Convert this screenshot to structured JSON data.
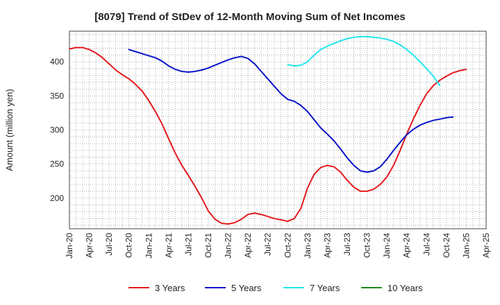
{
  "chart_data": {
    "type": "line",
    "title": "[8079]  Trend of StDev of 12-Month Moving Sum of Net Incomes",
    "xlabel": "",
    "ylabel": "Amount (million yen)",
    "xlim": [
      "2020-01",
      "2025-04"
    ],
    "ylim": [
      155,
      445
    ],
    "y_ticks": [
      200,
      250,
      300,
      350,
      400
    ],
    "x_ticks": [
      "Jan-20",
      "Apr-20",
      "Jul-20",
      "Oct-20",
      "Jan-21",
      "Apr-21",
      "Jul-21",
      "Oct-21",
      "Jan-22",
      "Apr-22",
      "Jul-22",
      "Oct-22",
      "Jan-23",
      "Apr-23",
      "Jul-23",
      "Oct-23",
      "Jan-24",
      "Apr-24",
      "Jul-24",
      "Oct-24",
      "Jan-25",
      "Apr-25"
    ],
    "grid": true,
    "legend_position": "bottom",
    "series": [
      {
        "name": "3 Years",
        "color": "#e31a1c",
        "points": [
          [
            "2020-01",
            419
          ],
          [
            "2020-02",
            421
          ],
          [
            "2020-03",
            421
          ],
          [
            "2020-04",
            418
          ],
          [
            "2020-05",
            413
          ],
          [
            "2020-06",
            406
          ],
          [
            "2020-07",
            397
          ],
          [
            "2020-08",
            388
          ],
          [
            "2020-09",
            381
          ],
          [
            "2020-10",
            375
          ],
          [
            "2020-11",
            367
          ],
          [
            "2020-12",
            357
          ],
          [
            "2021-01",
            343
          ],
          [
            "2021-02",
            327
          ],
          [
            "2021-03",
            309
          ],
          [
            "2021-04",
            287
          ],
          [
            "2021-05",
            266
          ],
          [
            "2021-06",
            248
          ],
          [
            "2021-07",
            233
          ],
          [
            "2021-08",
            217
          ],
          [
            "2021-09",
            200
          ],
          [
            "2021-10",
            181
          ],
          [
            "2021-11",
            169
          ],
          [
            "2021-12",
            163
          ],
          [
            "2022-01",
            162
          ],
          [
            "2022-02",
            164
          ],
          [
            "2022-03",
            169
          ],
          [
            "2022-04",
            176
          ],
          [
            "2022-05",
            178
          ],
          [
            "2022-06",
            176
          ],
          [
            "2022-07",
            173
          ],
          [
            "2022-08",
            170
          ],
          [
            "2022-09",
            168
          ],
          [
            "2022-10",
            166
          ],
          [
            "2022-11",
            170
          ],
          [
            "2022-12",
            185
          ],
          [
            "2023-01",
            215
          ],
          [
            "2023-02",
            235
          ],
          [
            "2023-03",
            245
          ],
          [
            "2023-04",
            248
          ],
          [
            "2023-05",
            246
          ],
          [
            "2023-06",
            238
          ],
          [
            "2023-07",
            226
          ],
          [
            "2023-08",
            216
          ],
          [
            "2023-09",
            210
          ],
          [
            "2023-10",
            210
          ],
          [
            "2023-11",
            213
          ],
          [
            "2023-12",
            220
          ],
          [
            "2024-01",
            231
          ],
          [
            "2024-02",
            248
          ],
          [
            "2024-03",
            270
          ],
          [
            "2024-04",
            294
          ],
          [
            "2024-05",
            316
          ],
          [
            "2024-06",
            336
          ],
          [
            "2024-07",
            353
          ],
          [
            "2024-08",
            365
          ],
          [
            "2024-09",
            373
          ],
          [
            "2024-10",
            379
          ],
          [
            "2024-11",
            384
          ],
          [
            "2024-12",
            387
          ],
          [
            "2025-01",
            389
          ]
        ]
      },
      {
        "name": "5 Years",
        "color": "#0a14c8",
        "points": [
          [
            "2020-10",
            418
          ],
          [
            "2020-11",
            415
          ],
          [
            "2020-12",
            412
          ],
          [
            "2021-01",
            409
          ],
          [
            "2021-02",
            406
          ],
          [
            "2021-03",
            401
          ],
          [
            "2021-04",
            394
          ],
          [
            "2021-05",
            389
          ],
          [
            "2021-06",
            386
          ],
          [
            "2021-07",
            385
          ],
          [
            "2021-08",
            386
          ],
          [
            "2021-09",
            388
          ],
          [
            "2021-10",
            391
          ],
          [
            "2021-11",
            395
          ],
          [
            "2021-12",
            399
          ],
          [
            "2022-01",
            403
          ],
          [
            "2022-02",
            406
          ],
          [
            "2022-03",
            408
          ],
          [
            "2022-04",
            405
          ],
          [
            "2022-05",
            397
          ],
          [
            "2022-06",
            386
          ],
          [
            "2022-07",
            375
          ],
          [
            "2022-08",
            364
          ],
          [
            "2022-09",
            353
          ],
          [
            "2022-10",
            345
          ],
          [
            "2022-11",
            342
          ],
          [
            "2022-12",
            336
          ],
          [
            "2023-01",
            327
          ],
          [
            "2023-02",
            315
          ],
          [
            "2023-03",
            303
          ],
          [
            "2023-04",
            294
          ],
          [
            "2023-05",
            284
          ],
          [
            "2023-06",
            272
          ],
          [
            "2023-07",
            259
          ],
          [
            "2023-08",
            248
          ],
          [
            "2023-09",
            240
          ],
          [
            "2023-10",
            238
          ],
          [
            "2023-11",
            240
          ],
          [
            "2023-12",
            246
          ],
          [
            "2024-01",
            257
          ],
          [
            "2024-02",
            270
          ],
          [
            "2024-03",
            282
          ],
          [
            "2024-04",
            293
          ],
          [
            "2024-05",
            301
          ],
          [
            "2024-06",
            307
          ],
          [
            "2024-07",
            311
          ],
          [
            "2024-08",
            314
          ],
          [
            "2024-09",
            316
          ],
          [
            "2024-10",
            318
          ],
          [
            "2024-11",
            319
          ]
        ]
      },
      {
        "name": "7 Years",
        "color": "#22e6f0",
        "points": [
          [
            "2022-10",
            396
          ],
          [
            "2022-11",
            394
          ],
          [
            "2022-12",
            395
          ],
          [
            "2023-01",
            400
          ],
          [
            "2023-02",
            410
          ],
          [
            "2023-03",
            418
          ],
          [
            "2023-04",
            423
          ],
          [
            "2023-05",
            427
          ],
          [
            "2023-06",
            431
          ],
          [
            "2023-07",
            434
          ],
          [
            "2023-08",
            436
          ],
          [
            "2023-09",
            437
          ],
          [
            "2023-10",
            437
          ],
          [
            "2023-11",
            436
          ],
          [
            "2023-12",
            435
          ],
          [
            "2024-01",
            433
          ],
          [
            "2024-02",
            430
          ],
          [
            "2024-03",
            425
          ],
          [
            "2024-04",
            418
          ],
          [
            "2024-05",
            410
          ],
          [
            "2024-06",
            400
          ],
          [
            "2024-07",
            390
          ],
          [
            "2024-08",
            379
          ],
          [
            "2024-09",
            365
          ]
        ]
      },
      {
        "name": "10 Years",
        "color": "#1a8a1a",
        "points": []
      }
    ]
  }
}
